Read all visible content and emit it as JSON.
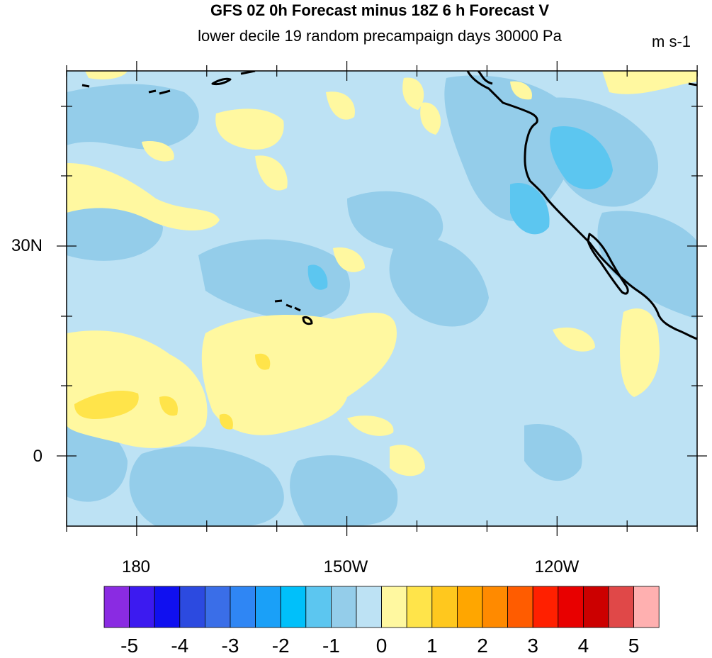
{
  "title": "GFS 0Z 0h Forecast minus 18Z 6 h Forecast V",
  "subtitle": "lower decile 19 random precampaign days 30000 Pa",
  "units": "m s-1",
  "lat_labels": [
    "30N",
    "0"
  ],
  "lon_labels": [
    "180",
    "150W",
    "120W"
  ],
  "colorbar": {
    "labels": [
      "-5",
      "-4",
      "-3",
      "-2",
      "-1",
      "0",
      "1",
      "2",
      "3",
      "4",
      "5"
    ],
    "colors": [
      "#8a2be2",
      "#3c1af0",
      "#1010f0",
      "#2c4ae0",
      "#3a6ee8",
      "#2f86f4",
      "#1aa0f8",
      "#00c0fa",
      "#5cc6f0",
      "#94cdea",
      "#bde2f4",
      "#fff8a0",
      "#ffe44a",
      "#ffc81e",
      "#ffa600",
      "#ff8a00",
      "#ff5c00",
      "#ff2000",
      "#e80000",
      "#cc0000",
      "#e04848",
      "#ffb0b0"
    ]
  },
  "map_colors": {
    "background": "#bde2f4",
    "negative_1": "#94cdea",
    "negative_2": "#5cc6f0",
    "positive_1": "#fff8a0",
    "positive_2": "#ffe44a",
    "coast": "#000000"
  }
}
